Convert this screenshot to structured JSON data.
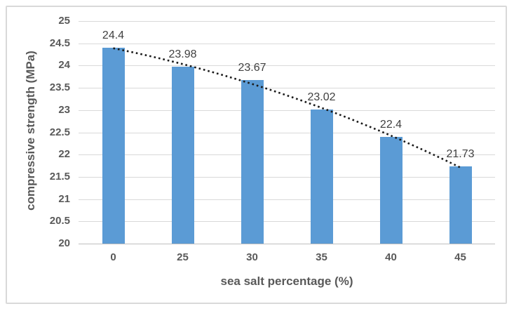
{
  "chart_data": {
    "type": "bar",
    "title": "",
    "categories": [
      "0",
      "25",
      "30",
      "35",
      "40",
      "45"
    ],
    "values": [
      24.4,
      23.98,
      23.67,
      23.02,
      22.4,
      21.73
    ],
    "value_labels": [
      "24.4",
      "23.98",
      "23.67",
      "23.02",
      "22.4",
      "21.73"
    ],
    "xlabel": "sea salt percentage (%)",
    "ylabel": "compressive strength (MPa)",
    "ylim": [
      20,
      25
    ],
    "ytick_step": 0.5,
    "grid": true,
    "legend": false,
    "series_name": "compressive strength",
    "trendline": {
      "style": "dotted",
      "fit": "polynomial-order-2",
      "start_mpa": 24.39,
      "mid_control_mpa": 23.61,
      "end_mpa": 21.71,
      "color": "#1a1a1a"
    },
    "colors": {
      "bar": "#5B9BD5",
      "gridline": "#D9D9D9",
      "axis_line": "#BFBFBF",
      "tick_label": "#595959",
      "data_label": "#404040",
      "frame_border": "#D9D9D9",
      "background": "#ffffff"
    }
  }
}
